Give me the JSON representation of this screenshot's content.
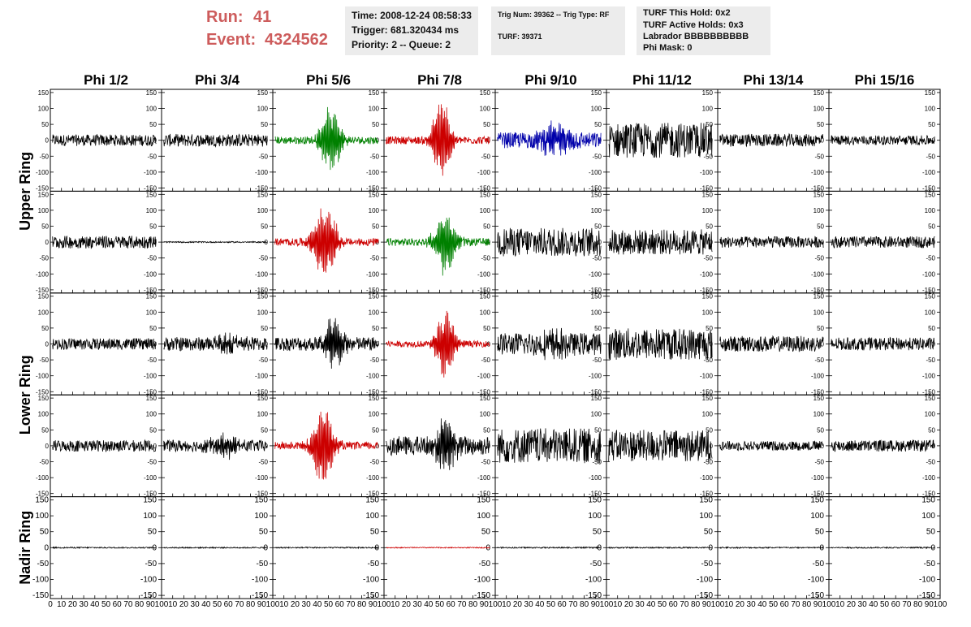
{
  "header": {
    "run_label": "Run:",
    "run_value": "41",
    "event_label": "Event:",
    "event_value": "4324562",
    "time_line": "Time: 2008-12-24 08:58:33",
    "trigger_line": "Trigger: 681.320434 ms",
    "priority_line": "Priority: 2 -- Queue: 2",
    "trig_line": "Trig Num: 39362 -- Trig Type: RF",
    "turf_line": "TURF: 39371",
    "turf_hold_line": "TURF This Hold: 0x2",
    "turf_active_line": "TURF Active Holds: 0x3",
    "labrador_line": "Labrador BBBBBBBBBB",
    "phi_mask_line": "Phi Mask: 0"
  },
  "colors": {
    "run_text": "#cd5c5c",
    "box_bg": "#ececec",
    "trace_default": "#000000",
    "trace_red": "#cc0000",
    "trace_green": "#008000",
    "trace_blue": "#0000aa"
  },
  "chart_data": {
    "type": "line",
    "columns": [
      "Phi 1/2",
      "Phi 3/4",
      "Phi 5/6",
      "Phi 7/8",
      "Phi 9/10",
      "Phi 11/12",
      "Phi 13/14",
      "Phi 15/16"
    ],
    "rows": [
      "Upper Ring",
      "Upper Ring",
      "Lower Ring",
      "Lower Ring",
      "Nadir Ring"
    ],
    "row_labels": [
      "Upper Ring",
      "Lower Ring",
      "Nadir Ring"
    ],
    "xlim": [
      0,
      100
    ],
    "ylim": [
      -160,
      160
    ],
    "x_ticks": [
      0,
      10,
      20,
      30,
      40,
      50,
      60,
      70,
      80,
      90,
      100
    ],
    "y_ticks": [
      -150,
      -100,
      -50,
      0,
      50,
      100,
      150
    ],
    "panels": [
      [
        {
          "color": "black",
          "noise": 18,
          "burst": 0,
          "center": 50,
          "width": 10
        },
        {
          "color": "black",
          "noise": 20,
          "burst": 0,
          "center": 50,
          "width": 10
        },
        {
          "color": "green",
          "noise": 12,
          "burst": 110,
          "center": 52,
          "width": 10
        },
        {
          "color": "red",
          "noise": 12,
          "burst": 135,
          "center": 52,
          "width": 9
        },
        {
          "color": "blue",
          "noise": 25,
          "burst": 45,
          "center": 55,
          "width": 15
        },
        {
          "color": "black",
          "noise": 55,
          "burst": 0,
          "center": 50,
          "width": 10
        },
        {
          "color": "black",
          "noise": 20,
          "burst": 0,
          "center": 50,
          "width": 10
        },
        {
          "color": "black",
          "noise": 15,
          "burst": 0,
          "center": 50,
          "width": 10
        }
      ],
      [
        {
          "color": "black",
          "noise": 20,
          "burst": 0,
          "center": 50,
          "width": 10
        },
        {
          "color": "black",
          "noise": 2,
          "burst": 0,
          "center": 50,
          "width": 10
        },
        {
          "color": "red",
          "noise": 12,
          "burst": 130,
          "center": 47,
          "width": 11
        },
        {
          "color": "green",
          "noise": 12,
          "burst": 105,
          "center": 55,
          "width": 10
        },
        {
          "color": "black",
          "noise": 45,
          "burst": 0,
          "center": 50,
          "width": 10
        },
        {
          "color": "black",
          "noise": 40,
          "burst": 0,
          "center": 50,
          "width": 10
        },
        {
          "color": "black",
          "noise": 18,
          "burst": 0,
          "center": 50,
          "width": 10
        },
        {
          "color": "black",
          "noise": 18,
          "burst": 0,
          "center": 50,
          "width": 10
        }
      ],
      [
        {
          "color": "black",
          "noise": 18,
          "burst": 0,
          "center": 50,
          "width": 10
        },
        {
          "color": "black",
          "noise": 22,
          "burst": 30,
          "center": 60,
          "width": 12
        },
        {
          "color": "black",
          "noise": 22,
          "burst": 90,
          "center": 55,
          "width": 9
        },
        {
          "color": "red",
          "noise": 10,
          "burst": 125,
          "center": 55,
          "width": 9
        },
        {
          "color": "black",
          "noise": 35,
          "burst": 30,
          "center": 55,
          "width": 15
        },
        {
          "color": "black",
          "noise": 50,
          "burst": 0,
          "center": 50,
          "width": 10
        },
        {
          "color": "black",
          "noise": 25,
          "burst": 0,
          "center": 50,
          "width": 10
        },
        {
          "color": "black",
          "noise": 20,
          "burst": 0,
          "center": 50,
          "width": 10
        }
      ],
      [
        {
          "color": "black",
          "noise": 18,
          "burst": 0,
          "center": 50,
          "width": 10
        },
        {
          "color": "black",
          "noise": 18,
          "burst": 35,
          "center": 55,
          "width": 14
        },
        {
          "color": "red",
          "noise": 12,
          "burst": 140,
          "center": 45,
          "width": 10
        },
        {
          "color": "black",
          "noise": 30,
          "burst": 85,
          "center": 55,
          "width": 10
        },
        {
          "color": "black",
          "noise": 55,
          "burst": 0,
          "center": 50,
          "width": 10
        },
        {
          "color": "black",
          "noise": 50,
          "burst": 0,
          "center": 50,
          "width": 10
        },
        {
          "color": "black",
          "noise": 15,
          "burst": 0,
          "center": 50,
          "width": 10
        },
        {
          "color": "black",
          "noise": 18,
          "burst": 0,
          "center": 50,
          "width": 10
        }
      ],
      [
        {
          "color": "black",
          "noise": 2,
          "burst": 0,
          "center": 50,
          "width": 10
        },
        {
          "color": "black",
          "noise": 2,
          "burst": 0,
          "center": 50,
          "width": 10
        },
        {
          "color": "black",
          "noise": 2,
          "burst": 0,
          "center": 50,
          "width": 10
        },
        {
          "color": "red",
          "noise": 1.5,
          "burst": 0,
          "center": 50,
          "width": 10
        },
        {
          "color": "black",
          "noise": 2,
          "burst": 0,
          "center": 50,
          "width": 10
        },
        {
          "color": "black",
          "noise": 2,
          "burst": 0,
          "center": 50,
          "width": 10
        },
        {
          "color": "black",
          "noise": 2,
          "burst": 0,
          "center": 50,
          "width": 10
        },
        {
          "color": "black",
          "noise": 2,
          "burst": 0,
          "center": 50,
          "width": 10
        }
      ]
    ]
  }
}
